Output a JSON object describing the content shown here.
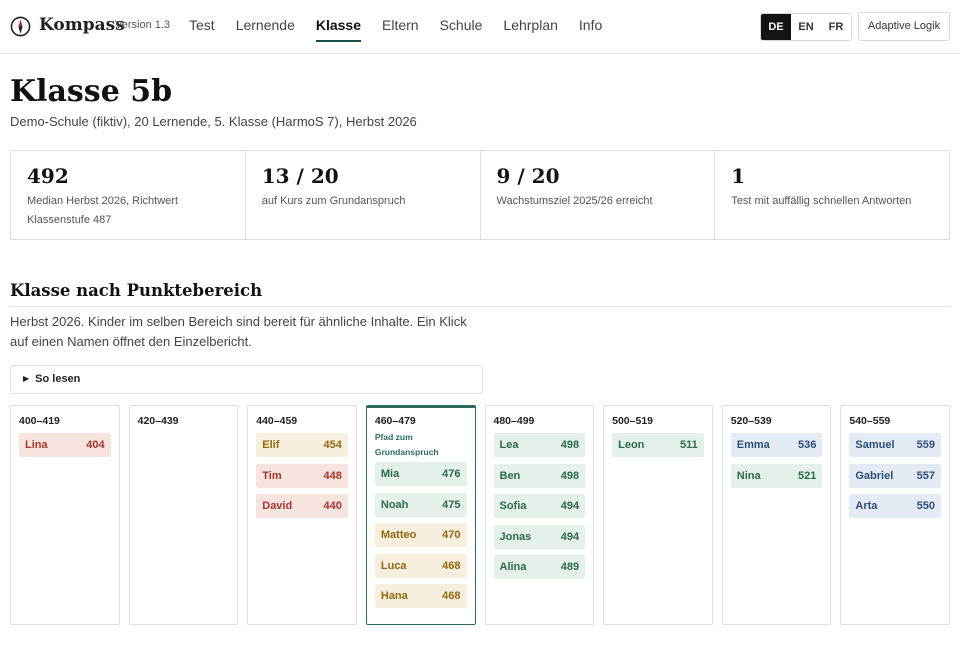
{
  "header": {
    "brand": "Kompass",
    "version": "Version 1.3",
    "nav": [
      "Test",
      "Lernende",
      "Klasse",
      "Eltern",
      "Schule",
      "Lehrplan",
      "Info"
    ],
    "active_nav": "Klasse",
    "languages": [
      "DE",
      "EN",
      "FR"
    ],
    "active_language": "DE",
    "adaptive_button": "Adaptive Logik"
  },
  "page": {
    "title": "Klasse 5b",
    "subtitle": "Demo-Schule (fiktiv), 20 Lernende, 5. Klasse (HarmoS 7), Herbst 2026"
  },
  "stats": [
    {
      "value": "492",
      "label": "Median Herbst 2026, Richtwert Klassenstufe 487"
    },
    {
      "value": "13 / 20",
      "label": "auf Kurs zum Grundanspruch"
    },
    {
      "value": "9 / 20",
      "label": "Wachstumsziel 2025/26 erreicht"
    },
    {
      "value": "1",
      "label": "Test mit auffällig schnellen Antworten"
    }
  ],
  "section": {
    "title": "Klasse nach Punktebereich",
    "intro": "Herbst 2026. Kinder im selben Bereich sind bereit für ähnliche Inhalte. Ein Klick auf einen Namen öffnet den Einzelbericht.",
    "howto": "So lesen"
  },
  "buckets": [
    {
      "range": "400–419",
      "note": "",
      "students": [
        {
          "name": "Lina",
          "score": "404",
          "status": "red"
        }
      ]
    },
    {
      "range": "420–439",
      "note": "",
      "students": []
    },
    {
      "range": "440–459",
      "note": "",
      "students": [
        {
          "name": "Elif",
          "score": "454",
          "status": "amber"
        },
        {
          "name": "Tim",
          "score": "448",
          "status": "red"
        },
        {
          "name": "David",
          "score": "440",
          "status": "red"
        }
      ]
    },
    {
      "range": "460–479",
      "note": "Pfad zum Grundanspruch",
      "students": [
        {
          "name": "Mia",
          "score": "476",
          "status": "green"
        },
        {
          "name": "Noah",
          "score": "475",
          "status": "green"
        },
        {
          "name": "Matteo",
          "score": "470",
          "status": "amber"
        },
        {
          "name": "Luca",
          "score": "468",
          "status": "amber"
        },
        {
          "name": "Hana",
          "score": "468",
          "status": "amber"
        }
      ]
    },
    {
      "range": "480–499",
      "note": "",
      "students": [
        {
          "name": "Lea",
          "score": "498",
          "status": "green"
        },
        {
          "name": "Ben",
          "score": "498",
          "status": "green"
        },
        {
          "name": "Sofia",
          "score": "494",
          "status": "green"
        },
        {
          "name": "Jonas",
          "score": "494",
          "status": "green"
        },
        {
          "name": "Alina",
          "score": "489",
          "status": "green"
        }
      ]
    },
    {
      "range": "500–519",
      "note": "",
      "students": [
        {
          "name": "Leon",
          "score": "511",
          "status": "green"
        }
      ]
    },
    {
      "range": "520–539",
      "note": "",
      "students": [
        {
          "name": "Emma",
          "score": "536",
          "status": "blue"
        },
        {
          "name": "Nina",
          "score": "521",
          "status": "green"
        }
      ]
    },
    {
      "range": "540–559",
      "note": "",
      "students": [
        {
          "name": "Samuel",
          "score": "559",
          "status": "blue"
        },
        {
          "name": "Gabriel",
          "score": "557",
          "status": "blue"
        },
        {
          "name": "Arta",
          "score": "550",
          "status": "blue"
        }
      ]
    }
  ],
  "colors": {
    "accent": "#2d6a5f",
    "below": "#a8352a",
    "watch": "#93680f",
    "on_track": "#2b6a4b",
    "above": "#2d4d7d"
  },
  "icons": {
    "logo": "compass-icon",
    "howto": "triangle-right-icon"
  }
}
